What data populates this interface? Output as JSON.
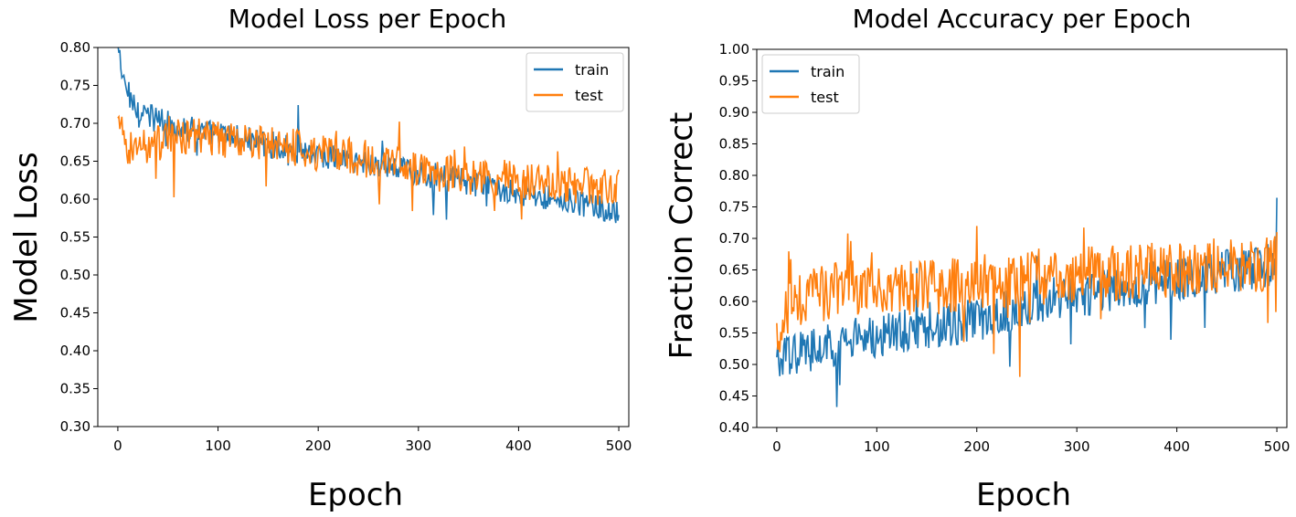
{
  "chart_data": [
    {
      "type": "line",
      "title": "Model Loss per Epoch",
      "xlabel": "Epoch",
      "ylabel": "Model Loss",
      "xlim": [
        -20,
        510
      ],
      "ylim": [
        0.3,
        0.8
      ],
      "xticks": [
        "0",
        "100",
        "200",
        "300",
        "400",
        "500"
      ],
      "yticks": [
        "0.30",
        "0.35",
        "0.40",
        "0.45",
        "0.50",
        "0.55",
        "0.60",
        "0.65",
        "0.70",
        "0.75",
        "0.80"
      ],
      "legend_position": "top-right",
      "grid": false,
      "series": [
        {
          "name": "train",
          "color": "#1f77b4",
          "x": [
            0,
            5,
            10,
            15,
            20,
            30,
            40,
            50,
            60,
            80,
            100,
            120,
            140,
            160,
            180,
            200,
            220,
            240,
            260,
            280,
            300,
            320,
            340,
            360,
            380,
            400,
            420,
            440,
            460,
            480,
            490,
            500
          ],
          "values": [
            0.8,
            0.76,
            0.74,
            0.73,
            0.72,
            0.71,
            0.705,
            0.7,
            0.695,
            0.69,
            0.685,
            0.68,
            0.675,
            0.67,
            0.665,
            0.66,
            0.655,
            0.65,
            0.645,
            0.64,
            0.635,
            0.63,
            0.625,
            0.62,
            0.615,
            0.61,
            0.605,
            0.6,
            0.595,
            0.59,
            0.58,
            0.58
          ]
        },
        {
          "name": "test",
          "color": "#ff7f0e",
          "x": [
            0,
            5,
            10,
            15,
            20,
            30,
            40,
            50,
            60,
            80,
            100,
            120,
            140,
            160,
            180,
            200,
            220,
            240,
            260,
            280,
            300,
            320,
            340,
            360,
            380,
            400,
            420,
            440,
            460,
            480,
            490,
            500
          ],
          "values": [
            0.7,
            0.68,
            0.67,
            0.668,
            0.67,
            0.672,
            0.675,
            0.678,
            0.68,
            0.682,
            0.68,
            0.678,
            0.675,
            0.672,
            0.668,
            0.662,
            0.658,
            0.655,
            0.65,
            0.645,
            0.64,
            0.635,
            0.632,
            0.63,
            0.628,
            0.625,
            0.622,
            0.62,
            0.618,
            0.615,
            0.62,
            0.62
          ]
        }
      ]
    },
    {
      "type": "line",
      "title": "Model Accuracy per Epoch",
      "xlabel": "Epoch",
      "ylabel": "Fraction Correct",
      "xlim": [
        -20,
        510
      ],
      "ylim": [
        0.4,
        1.0
      ],
      "xticks": [
        "0",
        "100",
        "200",
        "300",
        "400",
        "500"
      ],
      "yticks": [
        "0.40",
        "0.45",
        "0.50",
        "0.55",
        "0.60",
        "0.65",
        "0.70",
        "0.75",
        "0.80",
        "0.85",
        "0.90",
        "0.95",
        "1.00"
      ],
      "legend_position": "top-left",
      "grid": false,
      "series": [
        {
          "name": "train",
          "color": "#1f77b4",
          "x": [
            0,
            10,
            20,
            30,
            40,
            60,
            80,
            100,
            120,
            140,
            160,
            180,
            200,
            220,
            240,
            260,
            280,
            300,
            320,
            340,
            360,
            380,
            400,
            420,
            440,
            460,
            480,
            500
          ],
          "values": [
            0.5,
            0.51,
            0.52,
            0.52,
            0.53,
            0.53,
            0.54,
            0.545,
            0.55,
            0.555,
            0.56,
            0.565,
            0.57,
            0.58,
            0.59,
            0.6,
            0.605,
            0.61,
            0.615,
            0.62,
            0.625,
            0.63,
            0.635,
            0.64,
            0.645,
            0.65,
            0.655,
            0.66
          ]
        },
        {
          "name": "test",
          "color": "#ff7f0e",
          "x": [
            0,
            10,
            20,
            30,
            40,
            60,
            80,
            100,
            120,
            140,
            160,
            180,
            200,
            220,
            240,
            260,
            280,
            300,
            320,
            340,
            360,
            380,
            400,
            420,
            440,
            460,
            480,
            500
          ],
          "values": [
            0.55,
            0.58,
            0.6,
            0.61,
            0.61,
            0.62,
            0.62,
            0.62,
            0.625,
            0.62,
            0.62,
            0.625,
            0.63,
            0.63,
            0.635,
            0.64,
            0.64,
            0.64,
            0.645,
            0.645,
            0.645,
            0.65,
            0.65,
            0.655,
            0.655,
            0.66,
            0.66,
            0.665
          ]
        }
      ]
    }
  ]
}
